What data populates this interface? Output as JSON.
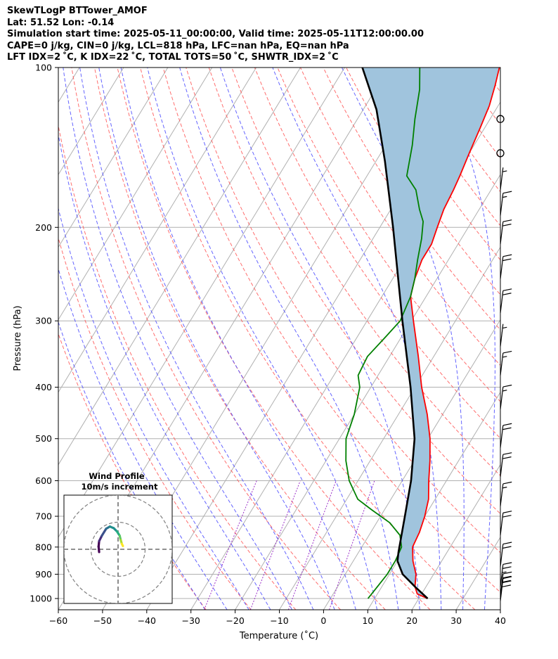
{
  "header": {
    "line1": "SkewTLogP BTTower_AMOF",
    "line2": "Lat: 51.52   Lon: -0.14",
    "line3": "Simulation start time: 2025-05-11_00:00:00, Valid time: 2025-05-11T12:00:00.00",
    "line4": "CAPE=0 j/kg, CIN=0 j/kg, LCL=818 hPa, LFC=nan hPa, EQ=nan hPa",
    "line5": "LFT IDX=2 ˚C, K IDX=22 ˚C, TOTAL TOTS=50 ˚C, SHWTR_IDX=2 ˚C"
  },
  "chart_data": {
    "type": "line",
    "title": "SkewTLogP BTTower_AMOF",
    "xlabel": "Temperature (˚C)",
    "ylabel": "Pressure (hPa)",
    "xlim": [
      -60,
      40
    ],
    "ylim": [
      1050,
      100
    ],
    "x_ticks": [
      -60,
      -50,
      -40,
      -30,
      -20,
      -10,
      0,
      10,
      20,
      30,
      40
    ],
    "y_ticks": [
      100,
      200,
      300,
      400,
      500,
      600,
      700,
      800,
      900,
      1000
    ],
    "grid": true,
    "colors": {
      "temperature": "#ff0000",
      "dewpoint": "#008000",
      "parcel": "#000000",
      "fill": "#a0c4dd",
      "dry_adiabat": "#ff5555",
      "moist_adiabat": "#4a4aff",
      "mixing_ratio": "#9b30c8",
      "isotherm": "#b0b0b0"
    },
    "series": [
      {
        "name": "Temperature",
        "points": [
          [
            1000,
            22
          ],
          [
            980,
            19
          ],
          [
            950,
            17.5
          ],
          [
            900,
            16
          ],
          [
            850,
            13.5
          ],
          [
            800,
            11.5
          ],
          [
            750,
            11
          ],
          [
            700,
            10
          ],
          [
            650,
            8.5
          ],
          [
            600,
            6
          ],
          [
            550,
            3.5
          ],
          [
            500,
            0.5
          ],
          [
            450,
            -3.5
          ],
          [
            400,
            -8.5
          ],
          [
            350,
            -13.5
          ],
          [
            300,
            -19.5
          ],
          [
            270,
            -23.5
          ],
          [
            250,
            -25
          ],
          [
            230,
            -26
          ],
          [
            215,
            -26
          ],
          [
            200,
            -27
          ],
          [
            185,
            -28
          ],
          [
            170,
            -28.5
          ],
          [
            160,
            -29
          ],
          [
            145,
            -30
          ],
          [
            130,
            -31
          ],
          [
            118,
            -32
          ],
          [
            108,
            -33.5
          ],
          [
            100,
            -35
          ]
        ]
      },
      {
        "name": "Dewpoint",
        "points": [
          [
            1000,
            8.5
          ],
          [
            950,
            9
          ],
          [
            900,
            9.5
          ],
          [
            850,
            9.5
          ],
          [
            800,
            9
          ],
          [
            760,
            7
          ],
          [
            720,
            3
          ],
          [
            680,
            -3
          ],
          [
            650,
            -7.5
          ],
          [
            600,
            -12
          ],
          [
            550,
            -15.5
          ],
          [
            500,
            -18.5
          ],
          [
            450,
            -20
          ],
          [
            400,
            -22.5
          ],
          [
            380,
            -24.5
          ],
          [
            350,
            -25
          ],
          [
            320,
            -23.5
          ],
          [
            300,
            -22.5
          ],
          [
            270,
            -23.5
          ],
          [
            250,
            -25
          ],
          [
            230,
            -27
          ],
          [
            210,
            -29
          ],
          [
            195,
            -31
          ],
          [
            185,
            -33.5
          ],
          [
            170,
            -37
          ],
          [
            160,
            -41
          ],
          [
            140,
            -44
          ],
          [
            125,
            -47
          ],
          [
            110,
            -50
          ],
          [
            100,
            -53
          ]
        ]
      },
      {
        "name": "Parcel",
        "points": [
          [
            1000,
            22
          ],
          [
            950,
            17.5
          ],
          [
            900,
            13
          ],
          [
            850,
            10
          ],
          [
            818,
            9
          ],
          [
            800,
            8.5
          ],
          [
            700,
            5.5
          ],
          [
            600,
            2
          ],
          [
            500,
            -3
          ],
          [
            400,
            -11
          ],
          [
            300,
            -22
          ],
          [
            200,
            -37
          ],
          [
            150,
            -48
          ],
          [
            120,
            -57
          ],
          [
            100,
            -66
          ]
        ]
      }
    ],
    "wind_barbs": [
      {
        "pressure": 125,
        "speed_kt": 0
      },
      {
        "pressure": 145,
        "speed_kt": 0
      },
      {
        "pressure": 170,
        "speed_kt": 5
      },
      {
        "pressure": 190,
        "speed_kt": 15
      },
      {
        "pressure": 215,
        "speed_kt": 20
      },
      {
        "pressure": 250,
        "speed_kt": 20
      },
      {
        "pressure": 290,
        "speed_kt": 20
      },
      {
        "pressure": 335,
        "speed_kt": 5
      },
      {
        "pressure": 380,
        "speed_kt": 15
      },
      {
        "pressure": 440,
        "speed_kt": 15
      },
      {
        "pressure": 520,
        "speed_kt": 20
      },
      {
        "pressure": 590,
        "speed_kt": 20
      },
      {
        "pressure": 670,
        "speed_kt": 15
      },
      {
        "pressure": 760,
        "speed_kt": 20
      },
      {
        "pressure": 870,
        "speed_kt": 20
      },
      {
        "pressure": 950,
        "speed_kt": 25
      },
      {
        "pressure": 990,
        "speed_kt": 30
      },
      {
        "pressure": 1010,
        "speed_kt": 30
      }
    ],
    "hodograph": {
      "title": "Wind Profile",
      "subtitle": "10m/s increment",
      "rings_ms": [
        10,
        20,
        30
      ],
      "range_ms": 30,
      "points_uv": [
        [
          -3.5,
          -0.5
        ],
        [
          -3.6,
          0.5
        ],
        [
          -3.5,
          1.5
        ],
        [
          -3.0,
          2.5
        ],
        [
          -2.2,
          3.8
        ],
        [
          -1.5,
          4.2
        ],
        [
          -0.8,
          3.9
        ],
        [
          -0.2,
          3.3
        ],
        [
          0.3,
          2.5
        ],
        [
          0.5,
          1.7
        ],
        [
          0.7,
          1.0
        ],
        [
          0.9,
          0.6
        ]
      ]
    }
  }
}
